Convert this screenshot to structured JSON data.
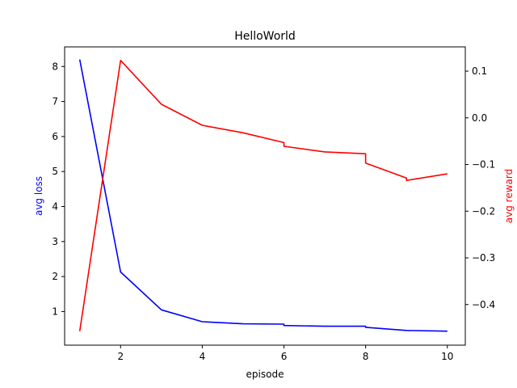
{
  "chart_data": {
    "type": "line",
    "title": "HelloWorld",
    "xlabel": "episode",
    "xlim": [
      0.63,
      10.44
    ],
    "xticks": [
      2,
      4,
      6,
      8,
      10
    ],
    "left_axis": {
      "label": "avg loss",
      "color": "#0000ff",
      "ylim": [
        0.04,
        8.56
      ],
      "ticks": [
        1,
        2,
        3,
        4,
        5,
        6,
        7,
        8
      ]
    },
    "right_axis": {
      "label": "avg reward",
      "color": "#ff0000",
      "ylim": [
        -0.487,
        0.152
      ],
      "ticks": [
        0.1,
        0.0,
        -0.1,
        -0.2,
        -0.3,
        -0.4
      ],
      "tick_labels": [
        "0.1",
        "0.0",
        "−0.1",
        "−0.2",
        "−0.3",
        "−0.4"
      ]
    },
    "series": [
      {
        "axis": "left",
        "color": "#0000ff",
        "x": [
          1,
          2,
          3,
          4,
          5,
          6,
          6,
          7,
          8,
          8,
          9,
          10
        ],
        "y": [
          8.2,
          2.13,
          1.05,
          0.71,
          0.65,
          0.64,
          0.6,
          0.58,
          0.58,
          0.55,
          0.46,
          0.44
        ]
      },
      {
        "axis": "right",
        "color": "#ff0000",
        "x": [
          1,
          2,
          3,
          4,
          5,
          6,
          6,
          7,
          8,
          8,
          9,
          9,
          10
        ],
        "y": [
          -0.457,
          0.123,
          0.029,
          -0.016,
          -0.032,
          -0.053,
          -0.061,
          -0.073,
          -0.077,
          -0.097,
          -0.129,
          -0.134,
          -0.12
        ]
      }
    ]
  }
}
